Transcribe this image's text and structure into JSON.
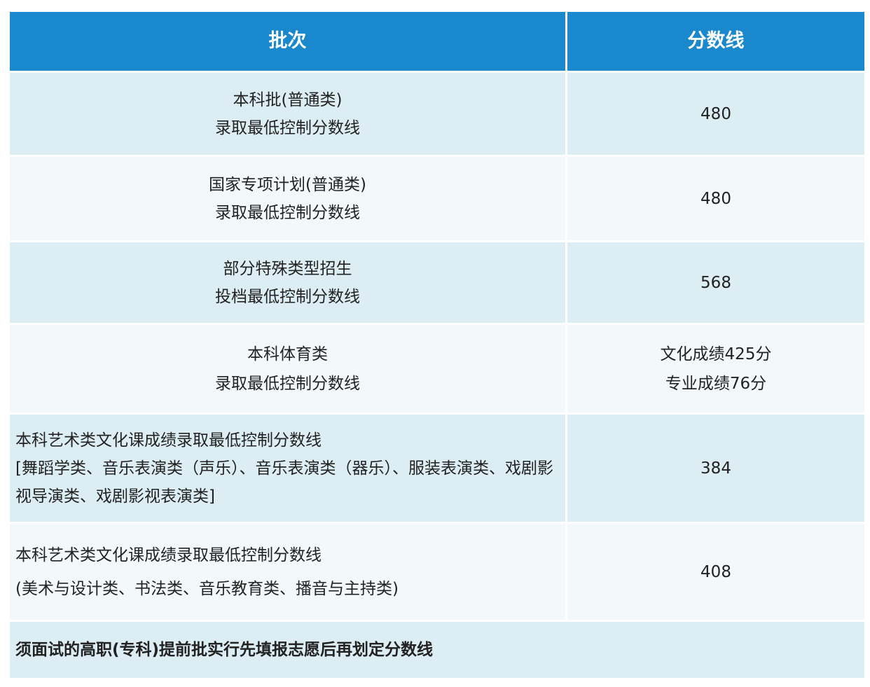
{
  "header": {
    "col1": "批次",
    "col2": "分数线"
  },
  "rows": [
    {
      "batch": [
        "本科批(普通类)",
        "录取最低控制分数线"
      ],
      "score": [
        "480"
      ]
    },
    {
      "batch": [
        "国家专项计划(普通类)",
        "录取最低控制分数线"
      ],
      "score": [
        "480"
      ]
    },
    {
      "batch": [
        "部分特殊类型招生",
        "投档最低控制分数线"
      ],
      "score": [
        "568"
      ]
    },
    {
      "batch": [
        "本科体育类",
        "录取最低控制分数线"
      ],
      "score": [
        "文化成绩425分",
        "专业成绩76分"
      ]
    },
    {
      "batch": [
        "本科艺术类文化课成绩录取最低控制分数线",
        "[舞蹈学类、音乐表演类（声乐）、音乐表演类（器乐）、服装表演类、戏剧影视导演类、戏剧影视表演类]"
      ],
      "score": [
        "384"
      ]
    },
    {
      "batch": [
        "本科艺术类文化课成绩录取最低控制分数线",
        "(美术与设计类、书法类、音乐教育类、播音与主持类)"
      ],
      "score": [
        "408"
      ]
    }
  ],
  "footer_row": "须面试的高职(专科)提前批实行先填报志愿后再划定分数线",
  "colors": {
    "header": "#1a88cc",
    "row_odd": "#dcedf4",
    "row_even": "#f3f8fa"
  }
}
